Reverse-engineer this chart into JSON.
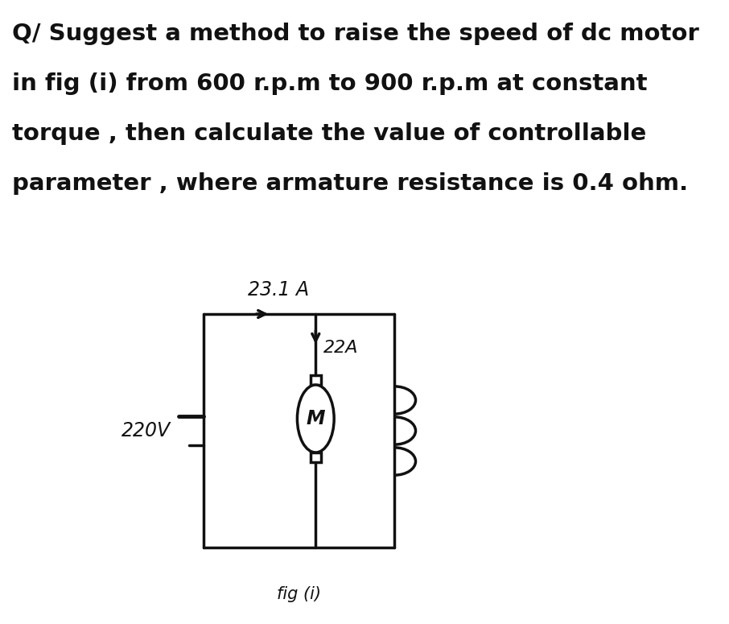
{
  "question_lines": [
    "Q/ Suggest a method to raise the speed of dc motor",
    "in fig (i) from 600 r.p.m to 900 r.p.m at constant",
    "torque , then calculate the value of controllable",
    "parameter , where armature resistance is 0.4 ohm."
  ],
  "current_label": "23.1 A",
  "voltage_label": "220V",
  "armature_current_label": "22A",
  "fig_label": "fig (i)",
  "bg_color": "#ffffff",
  "ink_color": "#111111",
  "text_color": "#111111",
  "question_fontsize": 21,
  "label_fontsize": 16,
  "fig_label_fontsize": 15
}
